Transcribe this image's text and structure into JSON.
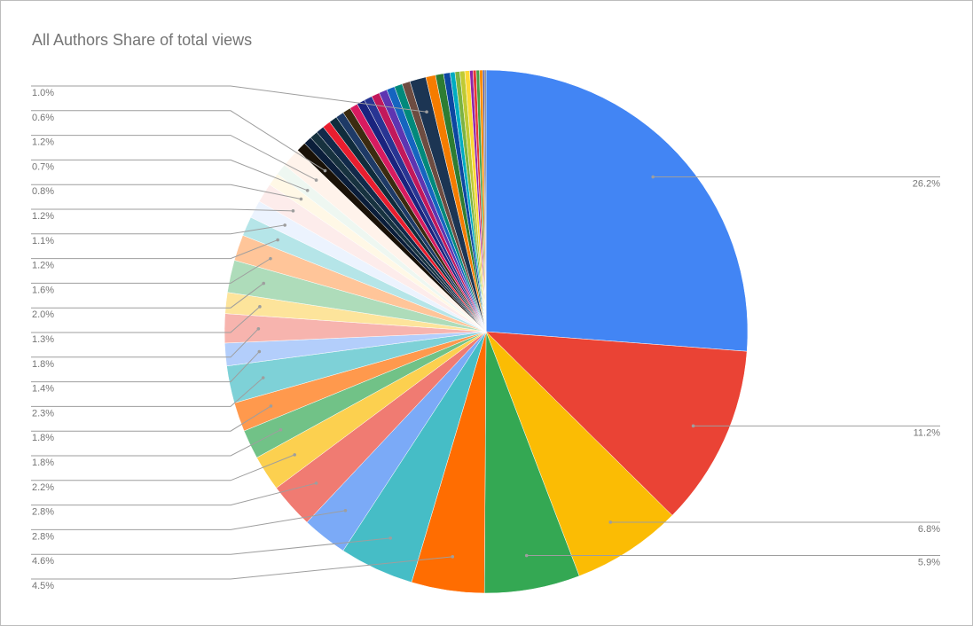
{
  "chart_data": {
    "type": "pie",
    "title": "All Authors Share of total views",
    "values": [
      26.2,
      11.2,
      6.8,
      5.9,
      4.5,
      4.6,
      2.8,
      2.8,
      2.2,
      1.8,
      1.8,
      2.3,
      1.4,
      1.8,
      1.3,
      2.0,
      1.6,
      1.2,
      1.1,
      1.2,
      0.8,
      0.7,
      1.2,
      0.6,
      0.5,
      0.5,
      0.5,
      0.5,
      0.5,
      0.5,
      0.5,
      0.5,
      0.5,
      0.5,
      0.5,
      0.5,
      0.5,
      0.5,
      0.5,
      1.0,
      0.6,
      0.5,
      0.4,
      0.3,
      0.3,
      0.3,
      0.3,
      0.2,
      0.2,
      0.2,
      0.2,
      0.1,
      0.1
    ],
    "value_labels": [
      "26.2%",
      "11.2%",
      "6.8%",
      "5.9%",
      "4.5%",
      "4.6%",
      "2.8%",
      "2.8%",
      "2.2%",
      "1.8%",
      "1.8%",
      "2.3%",
      "1.4%",
      "1.8%",
      "1.3%",
      "2.0%",
      "1.6%",
      "1.2%",
      "1.1%",
      "1.2%",
      "0.8%",
      "0.7%",
      "1.2%",
      "0.6%",
      null,
      null,
      null,
      null,
      null,
      null,
      null,
      null,
      null,
      null,
      null,
      null,
      null,
      null,
      null,
      "1.0%",
      null,
      null,
      null,
      null,
      null,
      null,
      null,
      null,
      null,
      null,
      null,
      null,
      null
    ],
    "colors": [
      "#4285f4",
      "#ea4335",
      "#fbbc04",
      "#34a853",
      "#ff6d01",
      "#46bdc6",
      "#7baaf7",
      "#f07b72",
      "#fcd04f",
      "#71c287",
      "#ff994d",
      "#7ed1d7",
      "#b3cefb",
      "#f7b4ae",
      "#fde49b",
      "#aedcba",
      "#ffc599",
      "#b5e5e8",
      "#ecf3fe",
      "#fdeceb",
      "#fff8e6",
      "#eef7f1",
      "#fff3eb",
      "#1a1208",
      "#0b1e3a",
      "#17323f",
      "#122a4a",
      "#e91e2f",
      "#102c3c",
      "#1e3a66",
      "#3b2b10",
      "#d81b60",
      "#1a237e",
      "#283593",
      "#c2185b",
      "#5e35b1",
      "#1565c0",
      "#00897b",
      "#6d4c41",
      "#1c3553",
      "#f57c00",
      "#2e7d32",
      "#0d47a1",
      "#00acc1",
      "#7cb342",
      "#c0ca33",
      "#fdd835",
      "#8e24aa",
      "#e53935",
      "#43a047",
      "#fb8c00",
      "#3949ab",
      "#757575"
    ]
  }
}
